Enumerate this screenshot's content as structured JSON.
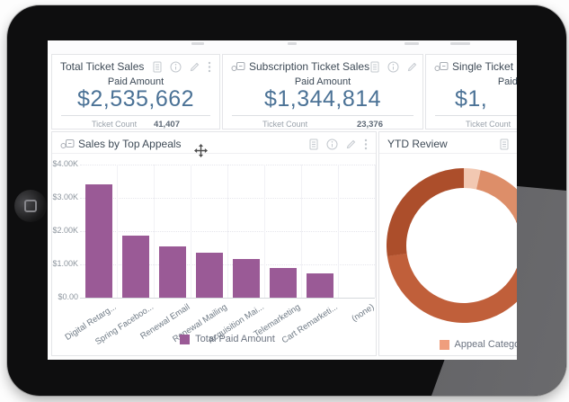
{
  "device": {
    "name": "tablet-landscape"
  },
  "kpi_cards": [
    {
      "title": "Total Ticket Sales",
      "metric_label": "Paid Amount",
      "metric_value": "$2,535,662",
      "count_label": "Ticket Count",
      "count_value": "41,407"
    },
    {
      "title": "Subscription Ticket Sales",
      "metric_label": "Paid Amount",
      "metric_value": "$1,344,814",
      "count_label": "Ticket Count",
      "count_value": "23,376"
    },
    {
      "title": "Single Ticket Sales",
      "metric_label": "Paid Amount",
      "metric_value": "$1,",
      "count_label": "Ticket Count",
      "count_value": ""
    }
  ],
  "chart_data": [
    {
      "type": "bar",
      "title": "Sales by Top Appeals",
      "categories": [
        "Digital Retarg...",
        "Spring Faceboo...",
        "Renewal Email",
        "Renewal Mailing",
        "Acquisition Mai...",
        "Telemarketing",
        "Cart Remarketi...",
        "(none)"
      ],
      "series": [
        {
          "name": "Total Paid Amount",
          "values": [
            3.4,
            1.87,
            1.54,
            1.35,
            1.16,
            0.89,
            0.73,
            0
          ]
        }
      ],
      "ylabel": "",
      "xlabel": "",
      "ylim": [
        0,
        4
      ],
      "yticks": [
        "$4.00K",
        "$3.00K",
        "$2.00K",
        "$1.00K",
        "$0.00"
      ],
      "value_unit": "$K",
      "bar_color": "#9a5a96",
      "grid": true,
      "legend_position": "bottom"
    },
    {
      "type": "donut",
      "title": "YTD Review",
      "segments": [
        {
          "name": "light-peach",
          "pct": 3.5,
          "color": "#f2c8b2"
        },
        {
          "name": "salmon",
          "pct": 14.5,
          "color": "#dd8e69"
        },
        {
          "name": "terracotta",
          "pct": 54.8,
          "color": "#c05f3a"
        },
        {
          "name": "dark-terracotta",
          "pct": 27.2,
          "color": "#ac4e2b"
        }
      ],
      "legend": [
        {
          "label": "Appeal Category",
          "color": "#ef9e7d"
        }
      ],
      "legend_position": "bottom"
    }
  ]
}
